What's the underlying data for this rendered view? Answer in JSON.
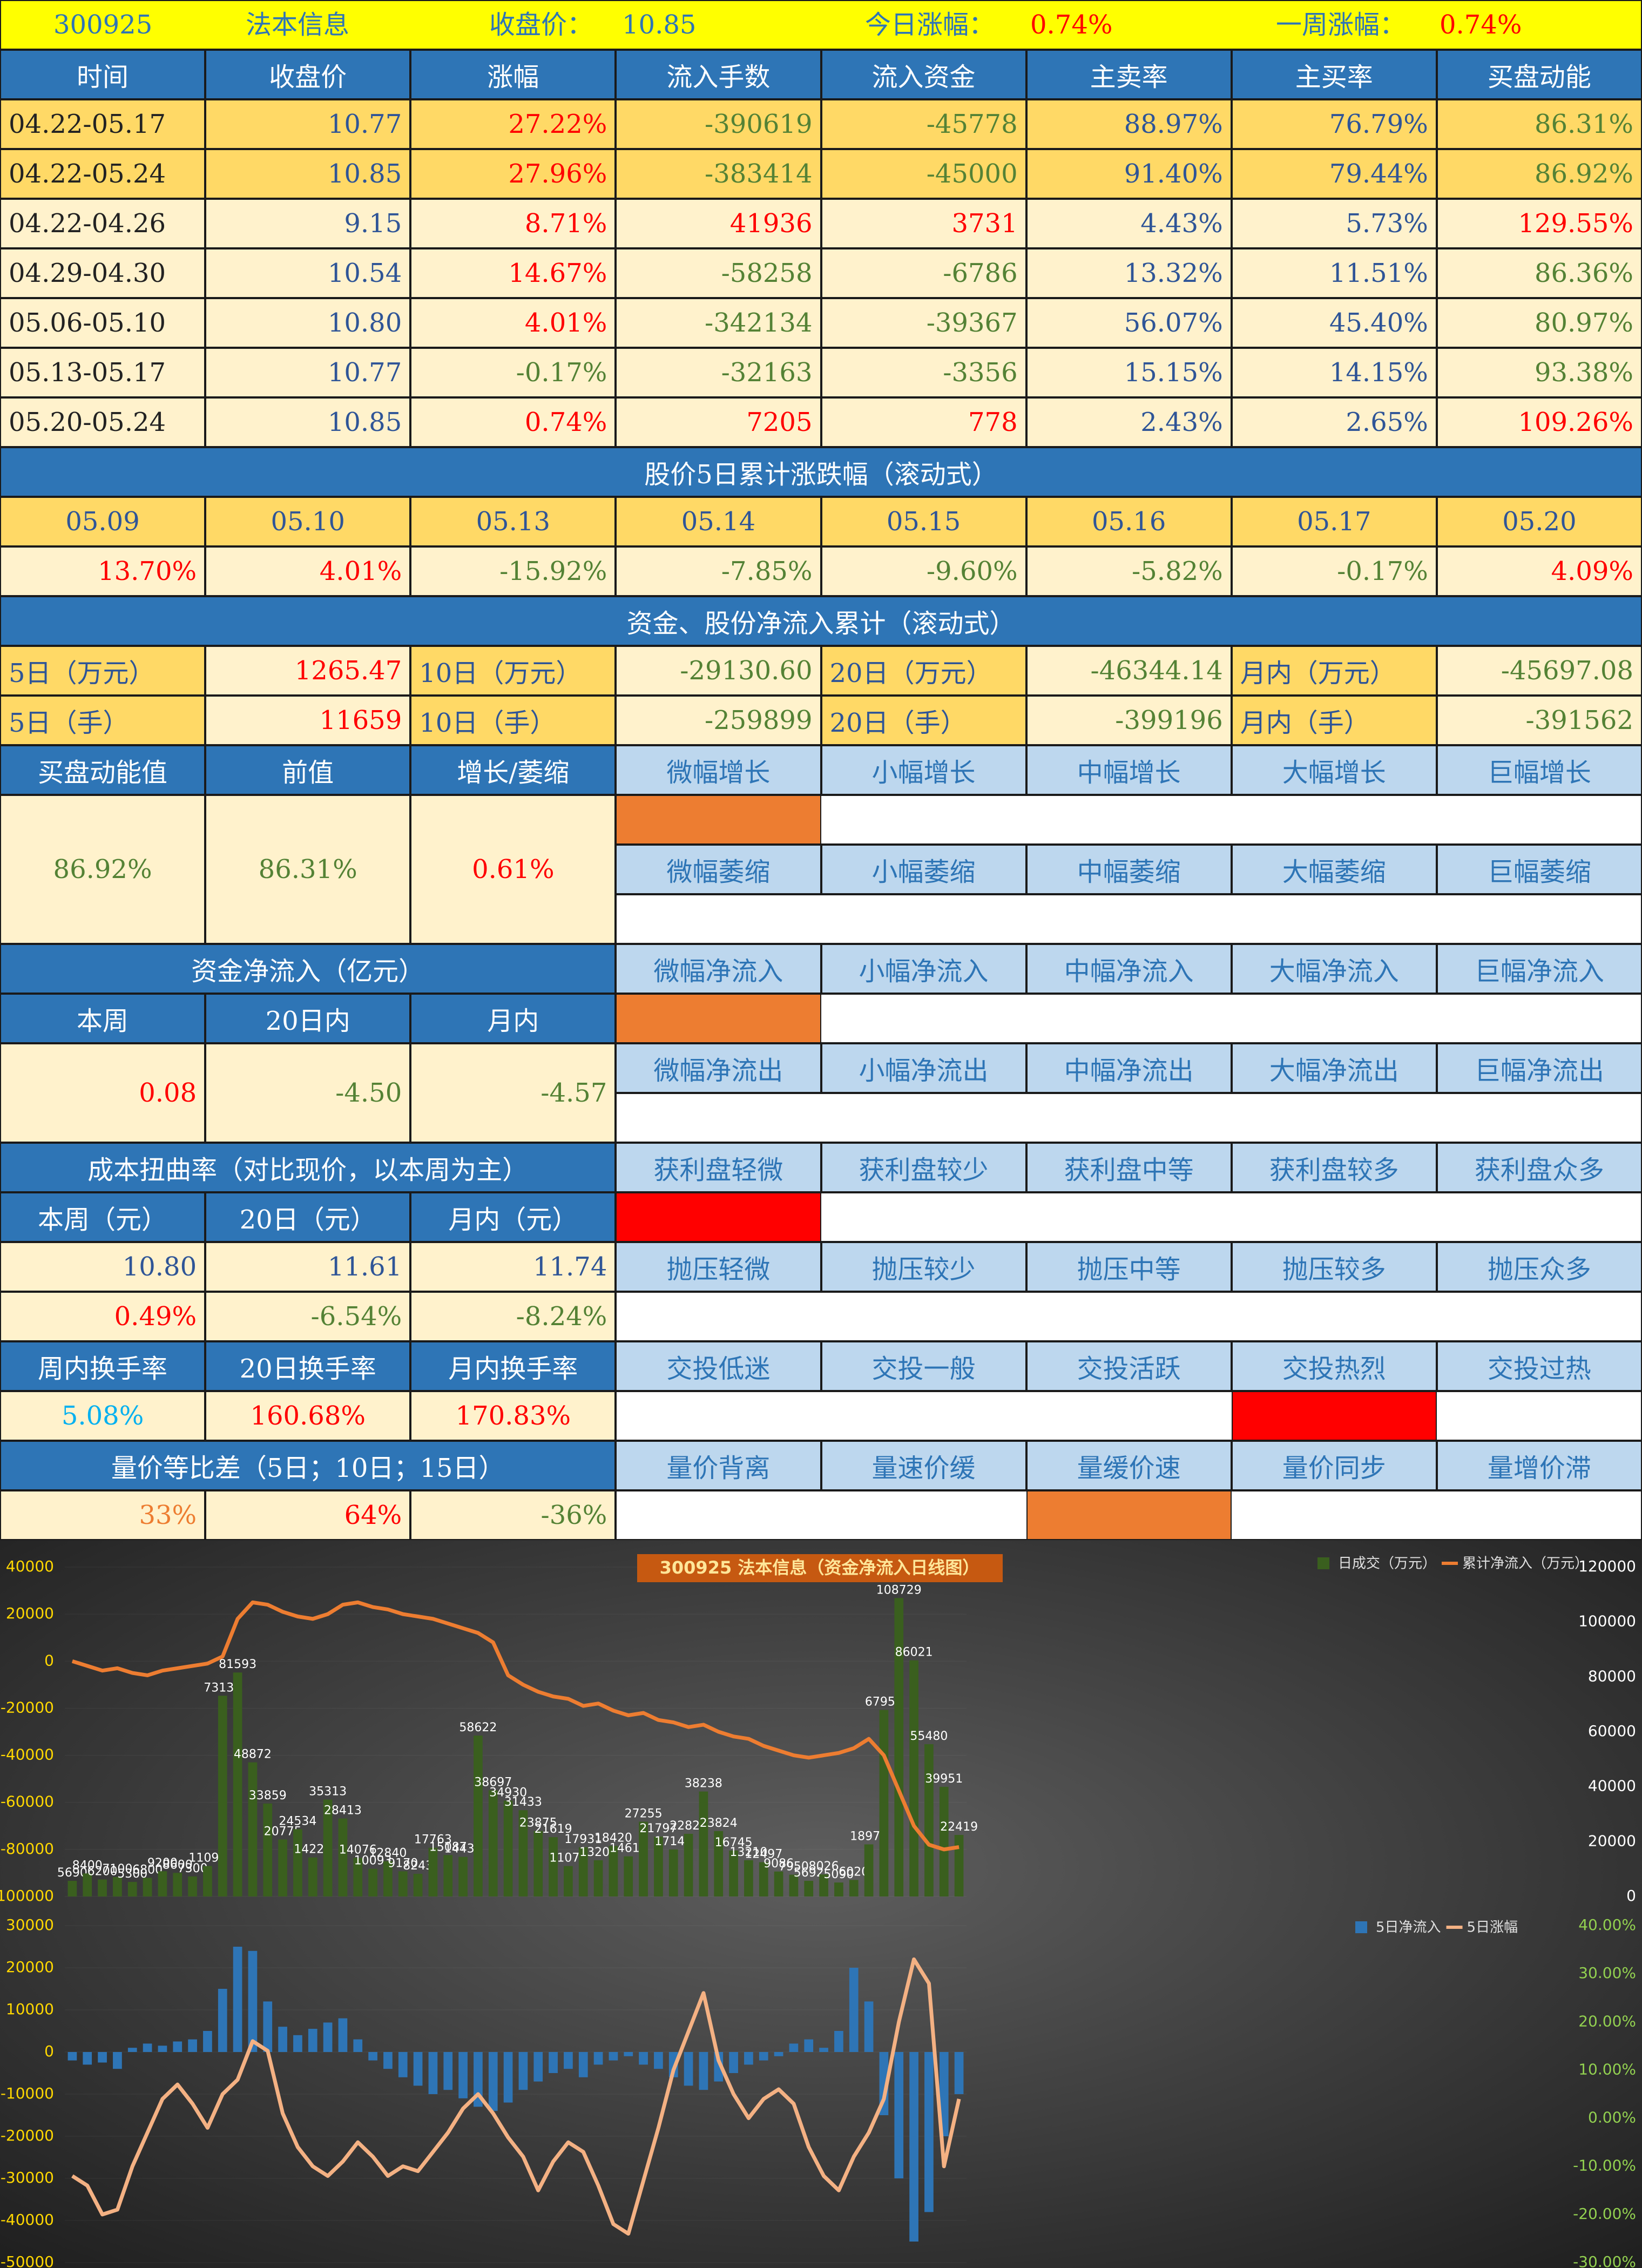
{
  "header": {
    "code": "300925",
    "name": "法本信息",
    "close_label": "收盘价：",
    "close": "10.85",
    "today_label": "今日涨幅：",
    "today": "0.74%",
    "week_label": "一周涨幅：",
    "week": "0.74%"
  },
  "main_table": {
    "columns": [
      "时间",
      "收盘价",
      "涨幅",
      "流入手数",
      "流入资金",
      "主卖率",
      "主买率",
      "买盘动能"
    ],
    "rows": [
      [
        "04.22-05.17",
        "10.77",
        "27.22%",
        "-390619",
        "-45778",
        "88.97%",
        "76.79%",
        "86.31%"
      ],
      [
        "04.22-05.24",
        "10.85",
        "27.96%",
        "-383414",
        "-45000",
        "91.40%",
        "79.44%",
        "86.92%"
      ],
      [
        "04.22-04.26",
        "9.15",
        "8.71%",
        "41936",
        "3731",
        "4.43%",
        "5.73%",
        "129.55%"
      ],
      [
        "04.29-04.30",
        "10.54",
        "14.67%",
        "-58258",
        "-6786",
        "13.32%",
        "11.51%",
        "86.36%"
      ],
      [
        "05.06-05.10",
        "10.80",
        "4.01%",
        "-342134",
        "-39367",
        "56.07%",
        "45.40%",
        "80.97%"
      ],
      [
        "05.13-05.17",
        "10.77",
        "-0.17%",
        "-32163",
        "-3356",
        "15.15%",
        "14.15%",
        "93.38%"
      ],
      [
        "05.20-05.24",
        "10.85",
        "0.74%",
        "7205",
        "778",
        "2.43%",
        "2.65%",
        "109.26%"
      ]
    ]
  },
  "rolling_change": {
    "title": "股价5日累计涨跌幅（滚动式）",
    "dates": [
      "05.09",
      "05.10",
      "05.13",
      "05.14",
      "05.15",
      "05.16",
      "05.17",
      "05.20"
    ],
    "values": [
      "13.70%",
      "4.01%",
      "-15.92%",
      "-7.85%",
      "-9.60%",
      "-5.82%",
      "-0.17%",
      "4.09%"
    ]
  },
  "cumulative": {
    "title": "资金、股份净流入累计（滚动式）",
    "rows": [
      [
        "5日（万元）",
        "1265.47",
        "10日（万元）",
        "-29130.60",
        "20日（万元）",
        "-46344.14",
        "月内（万元）",
        "-45697.08"
      ],
      [
        "5日（手）",
        "11659",
        "10日（手）",
        "-259899",
        "20日（手）",
        "-399196",
        "月内（手）",
        "-391562"
      ]
    ]
  },
  "momentum": {
    "headers": [
      "买盘动能值",
      "前值",
      "增长/萎缩"
    ],
    "values": [
      "86.92%",
      "86.31%",
      "0.61%"
    ]
  },
  "netflow": {
    "title": "资金净流入（亿元）",
    "headers": [
      "本周",
      "20日内",
      "月内"
    ],
    "values": [
      "0.08",
      "-4.50",
      "-4.57"
    ]
  },
  "cost": {
    "title": "成本扭曲率（对比现价，以本周为主）",
    "headers": [
      "本周（元）",
      "20日（元）",
      "月内（元）"
    ],
    "prices": [
      "10.80",
      "11.61",
      "11.74"
    ],
    "rates": [
      "0.49%",
      "-6.54%",
      "-8.24%"
    ]
  },
  "turnover": {
    "headers": [
      "周内换手率",
      "20日换手率",
      "月内换手率"
    ],
    "values": [
      "5.08%",
      "160.68%",
      "170.83%"
    ]
  },
  "volume_price": {
    "title": "量价等比差（5日；10日；15日）",
    "values": [
      "33%",
      "64%",
      "-36%"
    ]
  },
  "indicators": [
    {
      "labels": [
        "微幅增长",
        "小幅增长",
        "中幅增长",
        "大幅增长",
        "巨幅增长"
      ],
      "highlight": 0,
      "color": "#ed7d31"
    },
    {
      "labels": [
        "微幅萎缩",
        "小幅萎缩",
        "中幅萎缩",
        "大幅萎缩",
        "巨幅萎缩"
      ]
    },
    {
      "labels": [
        "微幅净流入",
        "小幅净流入",
        "中幅净流入",
        "大幅净流入",
        "巨幅净流入"
      ],
      "highlight": 0,
      "color": "#ed7d31"
    },
    {
      "labels": [
        "微幅净流出",
        "小幅净流出",
        "中幅净流出",
        "大幅净流出",
        "巨幅净流出"
      ]
    },
    {
      "labels": [
        "获利盘轻微",
        "获利盘较少",
        "获利盘中等",
        "获利盘较多",
        "获利盘众多"
      ],
      "highlight": 0,
      "color": "#ff0000"
    },
    {
      "labels": [
        "抛压轻微",
        "抛压较少",
        "抛压中等",
        "抛压较多",
        "抛压众多"
      ]
    },
    {
      "labels": [
        "交投低迷",
        "交投一般",
        "交投活跃",
        "交投热烈",
        "交投过热"
      ],
      "highlight": 3,
      "color": "#ff0000"
    },
    {
      "labels": [
        "量价背离",
        "量速价缓",
        "量缓价速",
        "量价同步",
        "量增价滞"
      ],
      "highlight": 2,
      "color": "#ed7d31"
    }
  ],
  "chart_data": [
    {
      "type": "combo",
      "title": "300925  法本信息（资金净流入日线图）",
      "ylim": [
        -100000,
        40000
      ],
      "yticks": [
        -100000,
        -80000,
        -60000,
        -40000,
        -20000,
        0,
        20000,
        40000
      ],
      "y2lim": [
        0,
        120000
      ],
      "y2ticks": [
        0,
        20000,
        40000,
        60000,
        80000,
        100000,
        120000
      ],
      "series": [
        {
          "name": "日成交（万元）",
          "type": "bar",
          "axis": "y2",
          "color": "#3a5f1e",
          "data_labels": true,
          "values": [
            5690,
            8400,
            6200,
            7100,
            5300,
            6800,
            9200,
            8600,
            7300,
            11094,
            73131,
            81593,
            48872,
            33859,
            20775,
            24534,
            14221,
            35313,
            28413,
            14076,
            10093,
            12840,
            9170,
            8243,
            17763,
            15087,
            14430,
            58622,
            38697,
            34930,
            31433,
            23875,
            21619,
            11076,
            17931,
            13208,
            18420,
            14617,
            27255,
            21797,
            17146,
            22824,
            38238,
            23824,
            16745,
            13210,
            12497,
            9086,
            7950,
            5692,
            8026,
            5090,
            6020,
            18975,
            67952,
            108729,
            86021,
            55480,
            39951,
            22419
          ]
        },
        {
          "name": "累计净流入（万元）",
          "type": "line",
          "axis": "y",
          "color": "#ed7d31",
          "values": [
            0,
            -2000,
            -4000,
            -3000,
            -5000,
            -6000,
            -4000,
            -3000,
            -2000,
            -1000,
            2000,
            18000,
            25000,
            24000,
            21000,
            19000,
            18000,
            20000,
            24000,
            25000,
            23000,
            22000,
            20000,
            19000,
            18000,
            16000,
            14000,
            12000,
            8000,
            -6000,
            -10000,
            -13000,
            -15000,
            -16000,
            -19000,
            -18000,
            -21000,
            -23000,
            -22000,
            -25000,
            -26000,
            -28000,
            -27000,
            -30000,
            -32000,
            -33000,
            -36000,
            -38000,
            -40000,
            -41000,
            -40000,
            -39000,
            -37000,
            -33000,
            -40000,
            -55000,
            -70000,
            -78000,
            -80000,
            -79000
          ]
        }
      ]
    },
    {
      "type": "combo",
      "ylim": [
        -50000,
        30000
      ],
      "yticks": [
        -50000,
        -40000,
        -30000,
        -20000,
        -10000,
        0,
        10000,
        20000,
        30000
      ],
      "y2lim": [
        -30,
        40
      ],
      "y2ticks": [
        {
          "value": -30,
          "label": "-30.00%"
        },
        {
          "value": -20,
          "label": "-20.00%"
        },
        {
          "value": -10,
          "label": "-10.00%"
        },
        {
          "value": 0,
          "label": "0.00%"
        },
        {
          "value": 10,
          "label": "10.00%"
        },
        {
          "value": 20,
          "label": "20.00%"
        },
        {
          "value": 30,
          "label": "30.00%"
        },
        {
          "value": 40,
          "label": "40.00%"
        }
      ],
      "series": [
        {
          "name": "5日净流入",
          "type": "bar",
          "axis": "y",
          "color": "#2e75b6",
          "values": [
            -2000,
            -3000,
            -2500,
            -4000,
            1000,
            2000,
            1500,
            2500,
            3000,
            5000,
            15000,
            25000,
            24000,
            12000,
            6000,
            4000,
            5500,
            7000,
            8000,
            3000,
            -2000,
            -4000,
            -6000,
            -8000,
            -10000,
            -9000,
            -11000,
            -13000,
            -14000,
            -12000,
            -9000,
            -7000,
            -5000,
            -4000,
            -6000,
            -3000,
            -2000,
            -1000,
            -3000,
            -4000,
            -6000,
            -8000,
            -9000,
            -7000,
            -5000,
            -3000,
            -2000,
            -1000,
            2000,
            3000,
            1000,
            5000,
            20000,
            12000,
            -15000,
            -30000,
            -45000,
            -38000,
            -20000,
            -10000
          ]
        },
        {
          "name": "5日涨幅",
          "type": "line",
          "axis": "y2",
          "color": "#f4b183",
          "values": [
            -12,
            -14,
            -20,
            -19,
            -10,
            -3,
            4,
            7,
            3,
            -2,
            5,
            8,
            16,
            14,
            1,
            -6,
            -10,
            -12,
            -9,
            -5,
            -8,
            -12,
            -10,
            -11,
            -7,
            -3,
            2,
            5,
            1,
            -4,
            -8,
            -15,
            -9,
            -5,
            -7,
            -14,
            -22,
            -24,
            -13,
            -2,
            10,
            18,
            26,
            12,
            5,
            0,
            4,
            6,
            3,
            -6,
            -12,
            -15,
            -8,
            -3,
            4,
            20,
            33,
            28,
            -10,
            4
          ]
        }
      ]
    }
  ]
}
